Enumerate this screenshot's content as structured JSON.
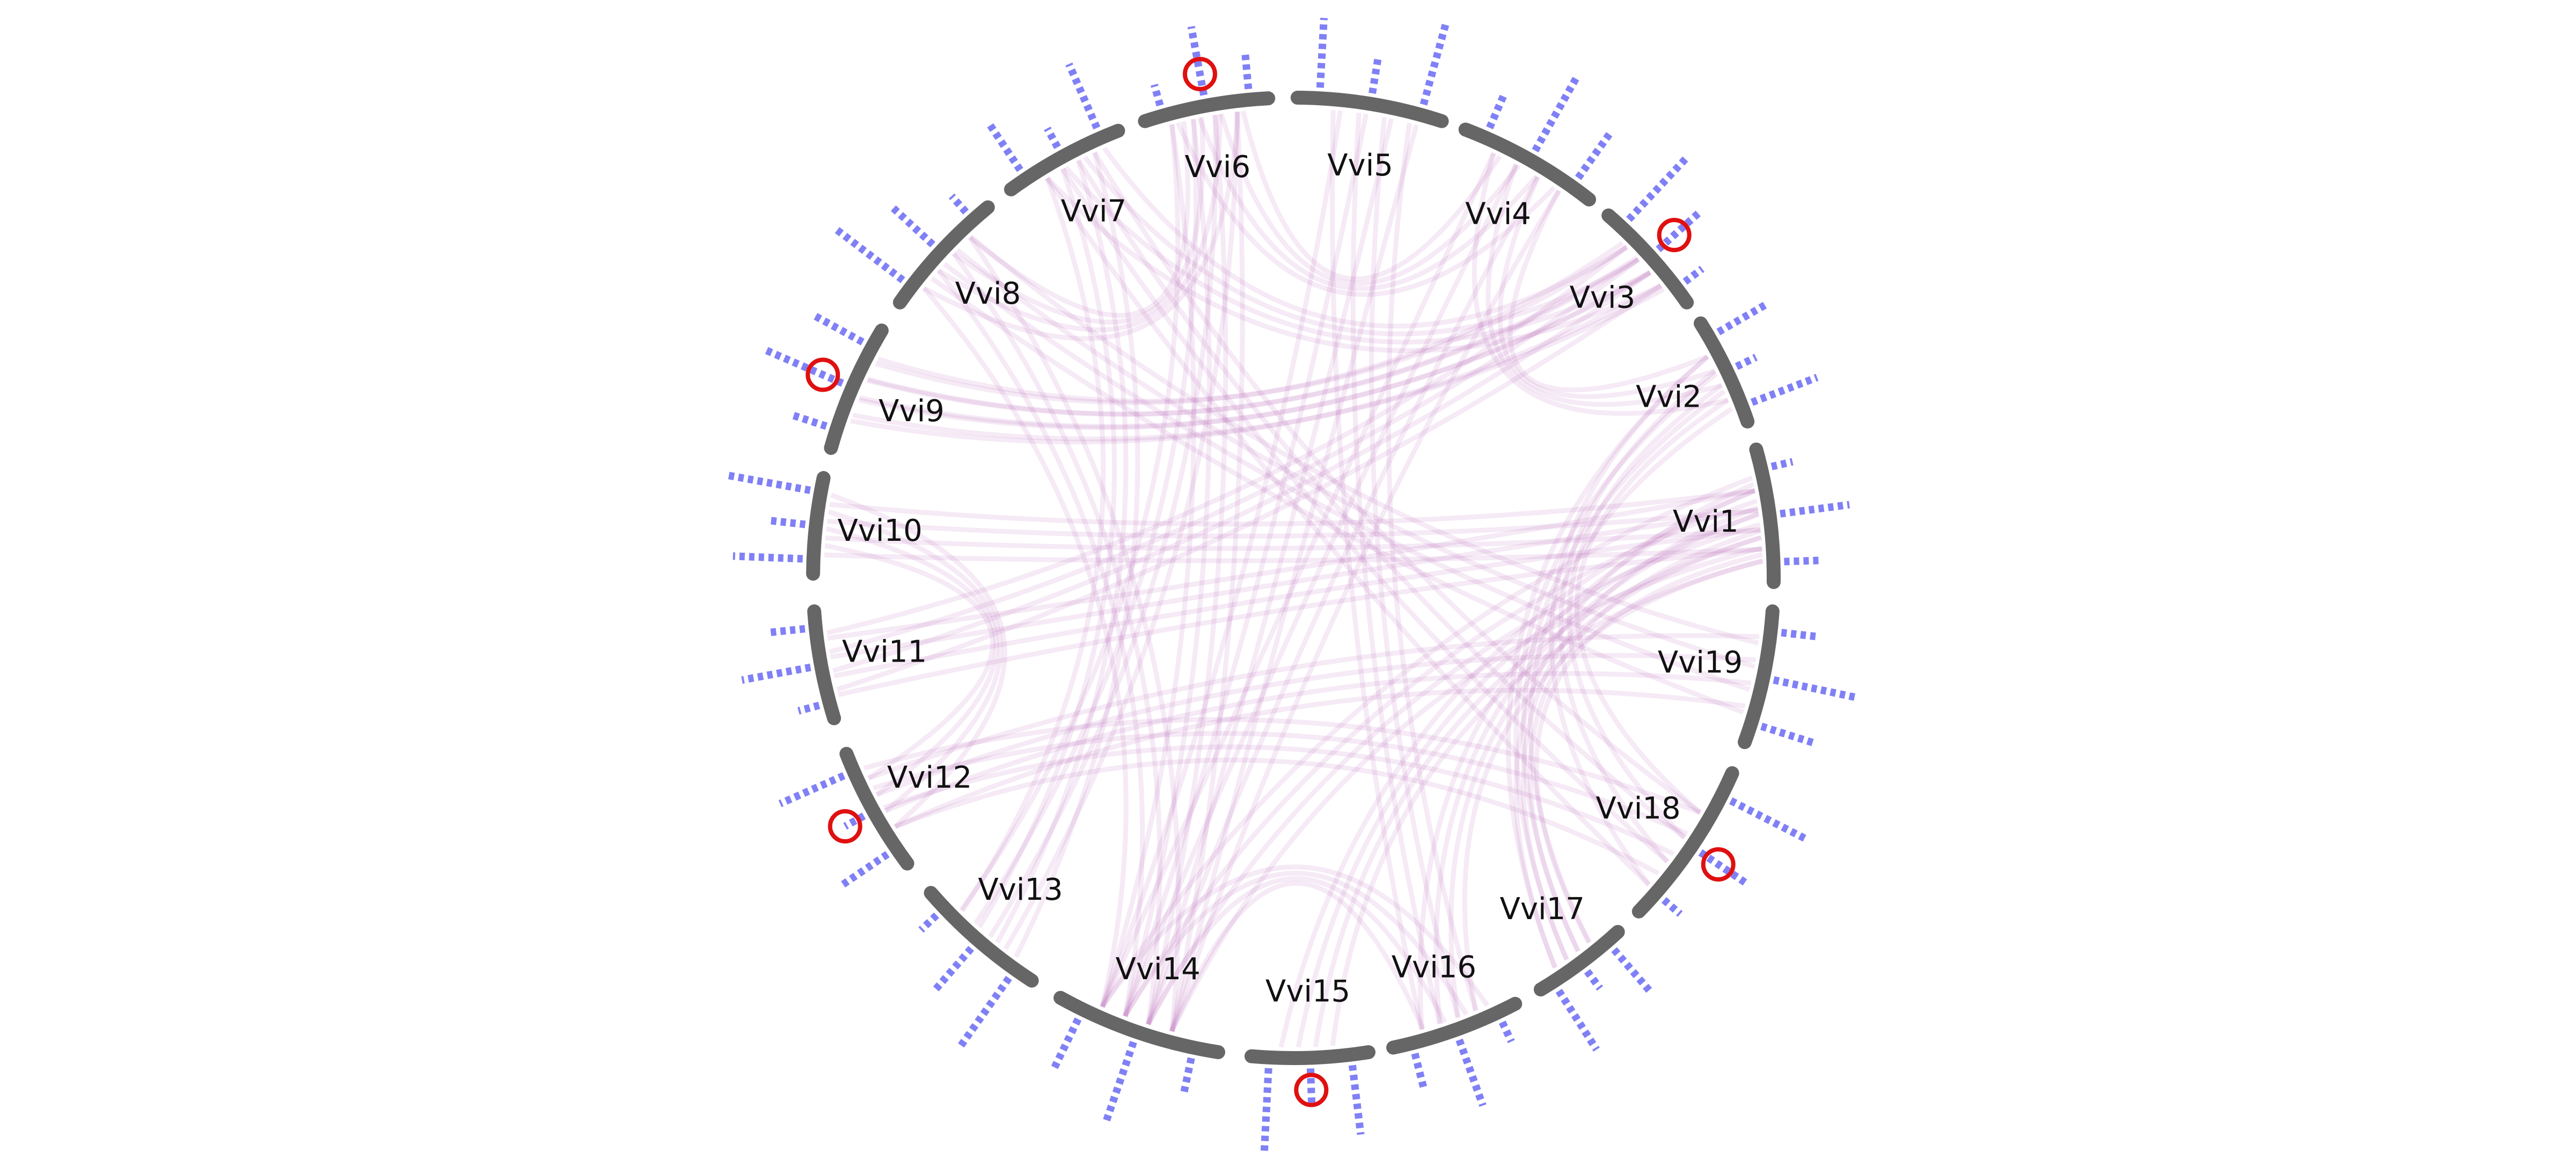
{
  "chromosomes": [
    "Vvi1",
    "Vvi2",
    "Vvi3",
    "Vvi4",
    "Vvi5",
    "Vvi6",
    "Vvi7",
    "Vvi8",
    "Vvi9",
    "Vvi10",
    "Vvi11",
    "Vvi12",
    "Vvi13",
    "Vvi14",
    "Vvi15",
    "Vvi16",
    "Vvi17",
    "Vvi18",
    "Vvi19"
  ]
}
